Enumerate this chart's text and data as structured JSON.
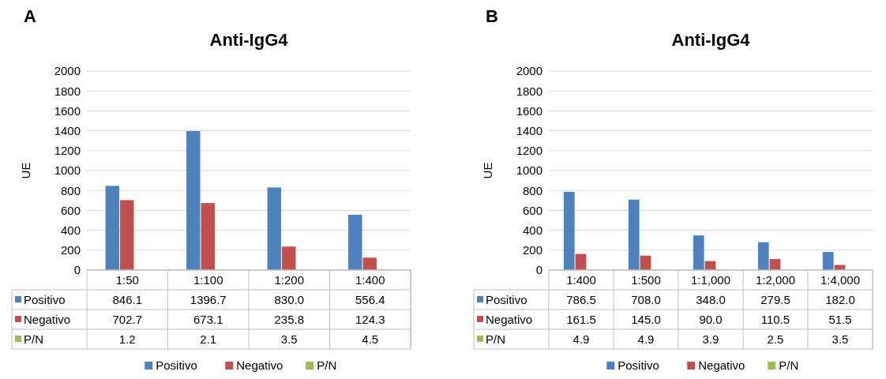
{
  "chart_data": [
    {
      "type": "bar",
      "title": "Anti-IgG4",
      "ylabel": "UE",
      "annotations": [
        "A"
      ],
      "categories": [
        "1:50",
        "1:100",
        "1:200",
        "1:400"
      ],
      "series": [
        {
          "name": "Positivo",
          "color": "#4f81bd",
          "values": [
            846.1,
            1396.7,
            830.0,
            556.4
          ],
          "value_labels": [
            "846.1",
            "1396.7",
            "830.0",
            "556.4"
          ]
        },
        {
          "name": "Negativo",
          "color": "#c0504d",
          "values": [
            702.7,
            673.1,
            235.8,
            124.3
          ],
          "value_labels": [
            "702.7",
            "673.1",
            "235.8",
            "124.3"
          ]
        },
        {
          "name": "P/N",
          "color": "#9bbb59",
          "values": [
            1.2,
            2.1,
            3.5,
            4.5
          ],
          "value_labels": [
            "1.2",
            "2.1",
            "3.5",
            "4.5"
          ]
        }
      ],
      "ylim": [
        0,
        2000
      ],
      "yticks": [
        0,
        200,
        400,
        600,
        800,
        1000,
        1200,
        1400,
        1600,
        1800,
        2000
      ],
      "grid": "y",
      "legend": "bottom"
    },
    {
      "type": "bar",
      "title": "Anti-IgG4",
      "ylabel": "UE",
      "annotations": [
        "B"
      ],
      "categories": [
        "1:400",
        "1:500",
        "1:1,000",
        "1:2,000",
        "1:4,000"
      ],
      "series": [
        {
          "name": "Positivo",
          "color": "#4f81bd",
          "values": [
            786.5,
            708.0,
            348.0,
            279.5,
            182.0
          ],
          "value_labels": [
            "786.5",
            "708.0",
            "348.0",
            "279.5",
            "182.0"
          ]
        },
        {
          "name": "Negativo",
          "color": "#c0504d",
          "values": [
            161.5,
            145.0,
            90.0,
            110.5,
            51.5
          ],
          "value_labels": [
            "161.5",
            "145.0",
            "90.0",
            "110.5",
            "51.5"
          ]
        },
        {
          "name": "P/N",
          "color": "#9bbb59",
          "values": [
            4.9,
            4.9,
            3.9,
            2.5,
            3.5
          ],
          "value_labels": [
            "4.9",
            "4.9",
            "3.9",
            "2.5",
            "3.5"
          ]
        }
      ],
      "ylim": [
        0,
        2000
      ],
      "yticks": [
        0,
        200,
        400,
        600,
        800,
        1000,
        1200,
        1400,
        1600,
        1800,
        2000
      ],
      "grid": "y",
      "legend": "bottom"
    }
  ]
}
